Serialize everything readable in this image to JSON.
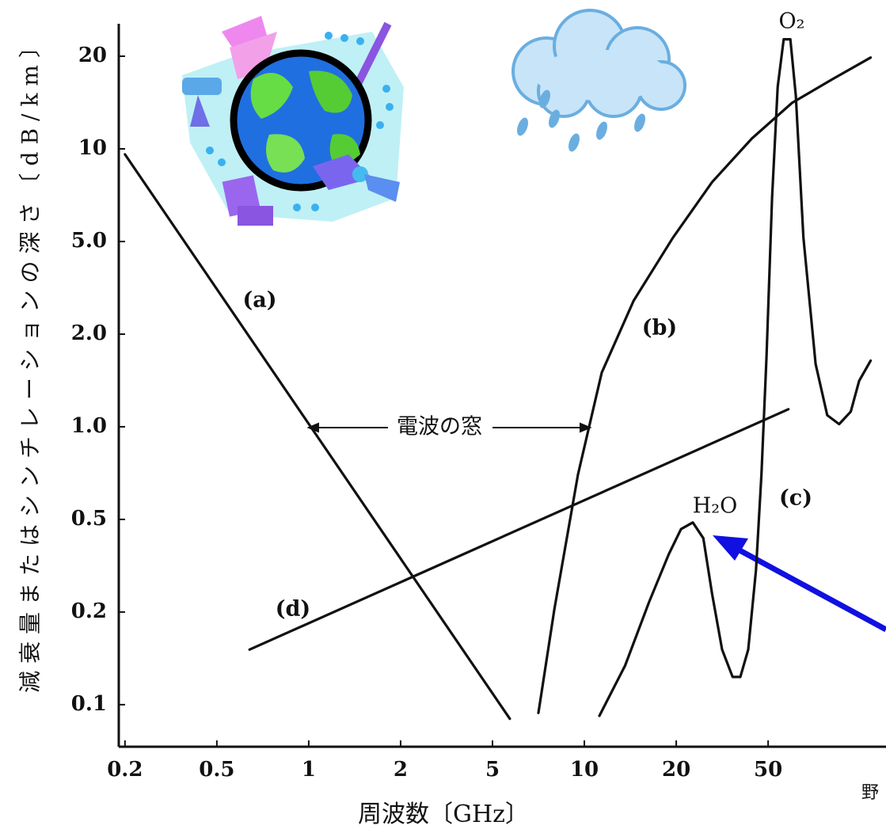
{
  "chart_data": {
    "type": "line",
    "xlabel": "周波数〔GHz〕",
    "ylabel": "減衰量またはシンチレーションの深さ〔dB/km〕",
    "xscale": "log",
    "yscale": "log",
    "xlim": [
      0.188,
      162
    ],
    "ylim": [
      0.073,
      25.5
    ],
    "xticks": [
      0.2,
      0.5,
      1,
      2,
      5,
      10,
      20,
      50
    ],
    "yticks": [
      0.1,
      0.2,
      {
        "value": 0.5,
        "label": "0.5"
      },
      {
        "value": 1,
        "label": "1.0"
      },
      {
        "value": 2,
        "label": "2.0"
      },
      {
        "value": 5,
        "label": "5.0"
      },
      10,
      20
    ],
    "series": [
      {
        "name": "(a)",
        "color": "#111111",
        "x": [
          0.2,
          5.7
        ],
        "values": [
          9.6,
          0.09
        ]
      },
      {
        "name": "(b)",
        "color": "#111111",
        "x": [
          7.07,
          7.97,
          9.53,
          11.4,
          14.5,
          19.5,
          28.6,
          42.5,
          63.4,
          94.5,
          139
        ],
        "values": [
          0.094,
          0.205,
          0.7,
          1.5,
          2.78,
          5.14,
          7.8,
          10.8,
          14.1,
          16.8,
          19.8
        ]
      },
      {
        "name": "(c)",
        "color": "#111111",
        "x": [
          11.2,
          13.6,
          16.3,
          18.9,
          20.97,
          23.6,
          26.2,
          28.6,
          31.6,
          35.1,
          37.9,
          41.0,
          44.3,
          46.8,
          49.2,
          52.0,
          55.0,
          58.4,
          62.4,
          65.9,
          71.1,
          80.3,
          90.2,
          101.5,
          114,
          124,
          139
        ],
        "values": [
          0.092,
          0.134,
          0.221,
          0.354,
          0.454,
          0.485,
          0.415,
          0.239,
          0.151,
          0.123,
          0.123,
          0.151,
          0.303,
          0.7,
          1.69,
          6.93,
          15.9,
          22.7,
          22.7,
          14.9,
          5.15,
          1.6,
          1.09,
          1.02,
          1.12,
          1.41,
          1.64
        ]
      },
      {
        "name": "(d)",
        "color": "#111111",
        "x": [
          0.64,
          61.2
        ],
        "values": [
          0.151,
          1.14
        ]
      }
    ],
    "annotations": {
      "window": "電波の窓",
      "h2o": "H₂O",
      "o2": "O₂",
      "corner": "野"
    }
  }
}
